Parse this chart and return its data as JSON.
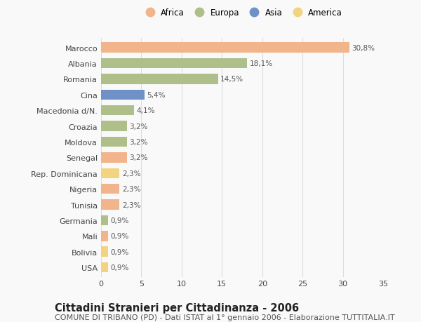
{
  "countries": [
    "Marocco",
    "Albania",
    "Romania",
    "Cina",
    "Macedonia d/N.",
    "Croazia",
    "Moldova",
    "Senegal",
    "Rep. Dominicana",
    "Nigeria",
    "Tunisia",
    "Germania",
    "Mali",
    "Bolivia",
    "USA"
  ],
  "values": [
    30.8,
    18.1,
    14.5,
    5.4,
    4.1,
    3.2,
    3.2,
    3.2,
    2.3,
    2.3,
    2.3,
    0.9,
    0.9,
    0.9,
    0.9
  ],
  "labels": [
    "30,8%",
    "18,1%",
    "14,5%",
    "5,4%",
    "4,1%",
    "3,2%",
    "3,2%",
    "3,2%",
    "2,3%",
    "2,3%",
    "2,3%",
    "0,9%",
    "0,9%",
    "0,9%",
    "0,9%"
  ],
  "continents": [
    "Africa",
    "Europa",
    "Europa",
    "Asia",
    "Europa",
    "Europa",
    "Europa",
    "Africa",
    "America",
    "Africa",
    "Africa",
    "Europa",
    "Africa",
    "America",
    "America"
  ],
  "colors": {
    "Africa": "#F2B48A",
    "Europa": "#AEBF8A",
    "Asia": "#7090C8",
    "America": "#F2D480"
  },
  "legend_order": [
    "Africa",
    "Europa",
    "Asia",
    "America"
  ],
  "legend_colors": [
    "#F2B48A",
    "#AEBF8A",
    "#7090C8",
    "#F2D480"
  ],
  "title": "Cittadini Stranieri per Cittadinanza - 2006",
  "subtitle": "COMUNE DI TRIBANO (PD) - Dati ISTAT al 1° gennaio 2006 - Elaborazione TUTTITALIA.IT",
  "xlim": [
    0,
    35
  ],
  "xticks": [
    0,
    5,
    10,
    15,
    20,
    25,
    30,
    35
  ],
  "background_color": "#f9f9f9",
  "grid_color": "#dddddd",
  "bar_height": 0.65,
  "title_fontsize": 10.5,
  "subtitle_fontsize": 8,
  "label_fontsize": 7.5,
  "tick_fontsize": 8,
  "legend_fontsize": 8.5
}
